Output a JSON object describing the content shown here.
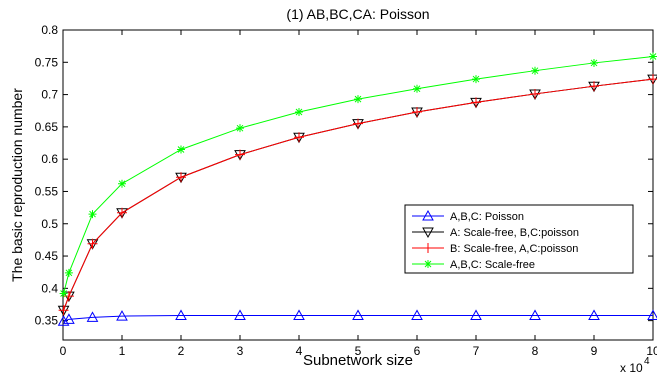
{
  "chart_data": {
    "type": "line",
    "title": "(1) AB,BC,CA: Poisson",
    "xlabel": "Subnetwork size",
    "ylabel": "The basic reproduction number",
    "x_multiplier_label": "x 10",
    "x_multiplier_exponent": "4",
    "xlim": [
      0,
      10
    ],
    "ylim": [
      0.32,
      0.8
    ],
    "x_ticks": [
      "0",
      "1",
      "2",
      "3",
      "4",
      "5",
      "6",
      "7",
      "8",
      "9",
      "10"
    ],
    "y_ticks": [
      "0.35",
      "0.4",
      "0.45",
      "0.5",
      "0.55",
      "0.6",
      "0.65",
      "0.7",
      "0.75",
      "0.8"
    ],
    "x": [
      0.01,
      0.1,
      0.5,
      1,
      2,
      3,
      4,
      5,
      6,
      7,
      8,
      9,
      10
    ],
    "legend_position": "right-middle",
    "series": [
      {
        "name": "A,B,C: Poisson",
        "color": "#0000ff",
        "marker": "triangle-up",
        "values": [
          0.349,
          0.352,
          0.355,
          0.357,
          0.358,
          0.358,
          0.358,
          0.358,
          0.358,
          0.358,
          0.358,
          0.358,
          0.358
        ]
      },
      {
        "name": "A: Scale-free, B,C:poisson",
        "color": "#000000",
        "marker": "triangle-down",
        "values": [
          0.366,
          0.388,
          0.469,
          0.517,
          0.572,
          0.607,
          0.634,
          0.655,
          0.673,
          0.688,
          0.701,
          0.713,
          0.724
        ]
      },
      {
        "name": "B: Scale-free, A,C:poisson",
        "color": "#ff0000",
        "marker": "plus",
        "values": [
          0.366,
          0.388,
          0.469,
          0.517,
          0.572,
          0.607,
          0.634,
          0.655,
          0.673,
          0.688,
          0.701,
          0.713,
          0.724
        ]
      },
      {
        "name": "A,B,C: Scale-free",
        "color": "#00ff00",
        "marker": "asterisk",
        "values": [
          0.392,
          0.424,
          0.515,
          0.562,
          0.615,
          0.648,
          0.673,
          0.693,
          0.709,
          0.724,
          0.737,
          0.749,
          0.759
        ]
      }
    ]
  }
}
